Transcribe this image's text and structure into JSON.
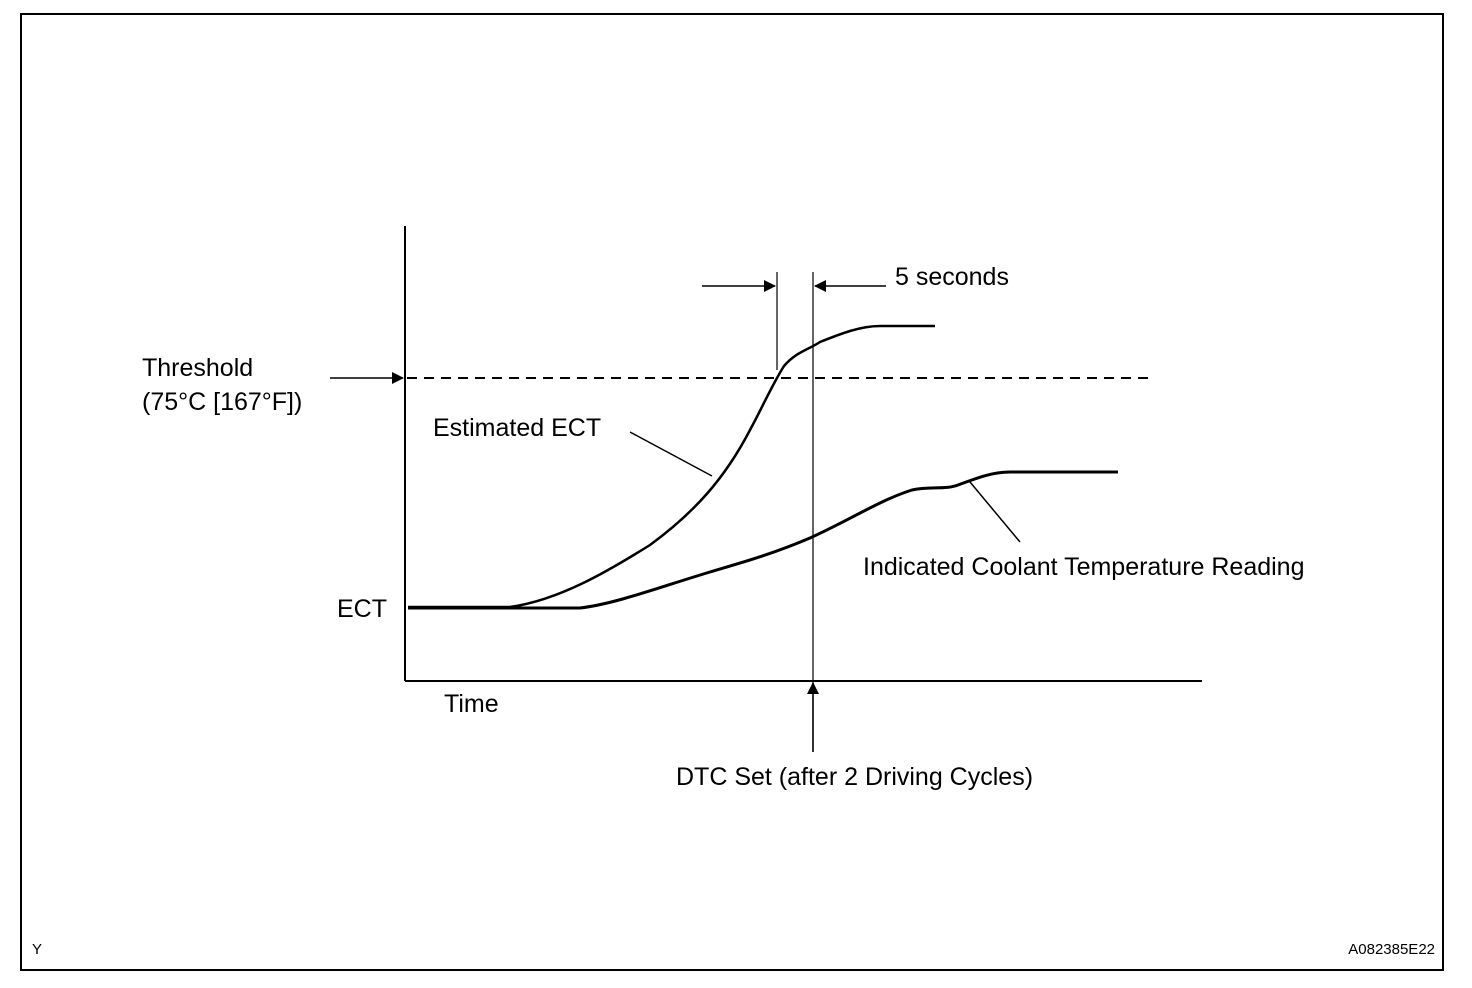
{
  "figure": {
    "labels": {
      "threshold_line1": "Threshold",
      "threshold_line2": "(75°C [167°F])",
      "ect": "ECT",
      "time": "Time",
      "estimated_ect": "Estimated ECT",
      "indicated_coolant": "Indicated Coolant Temperature Reading",
      "five_seconds": "5 seconds",
      "dtc_set": "DTC Set (after 2 Driving Cycles)"
    },
    "corner_left": "Y",
    "corner_right": "A082385E22"
  }
}
